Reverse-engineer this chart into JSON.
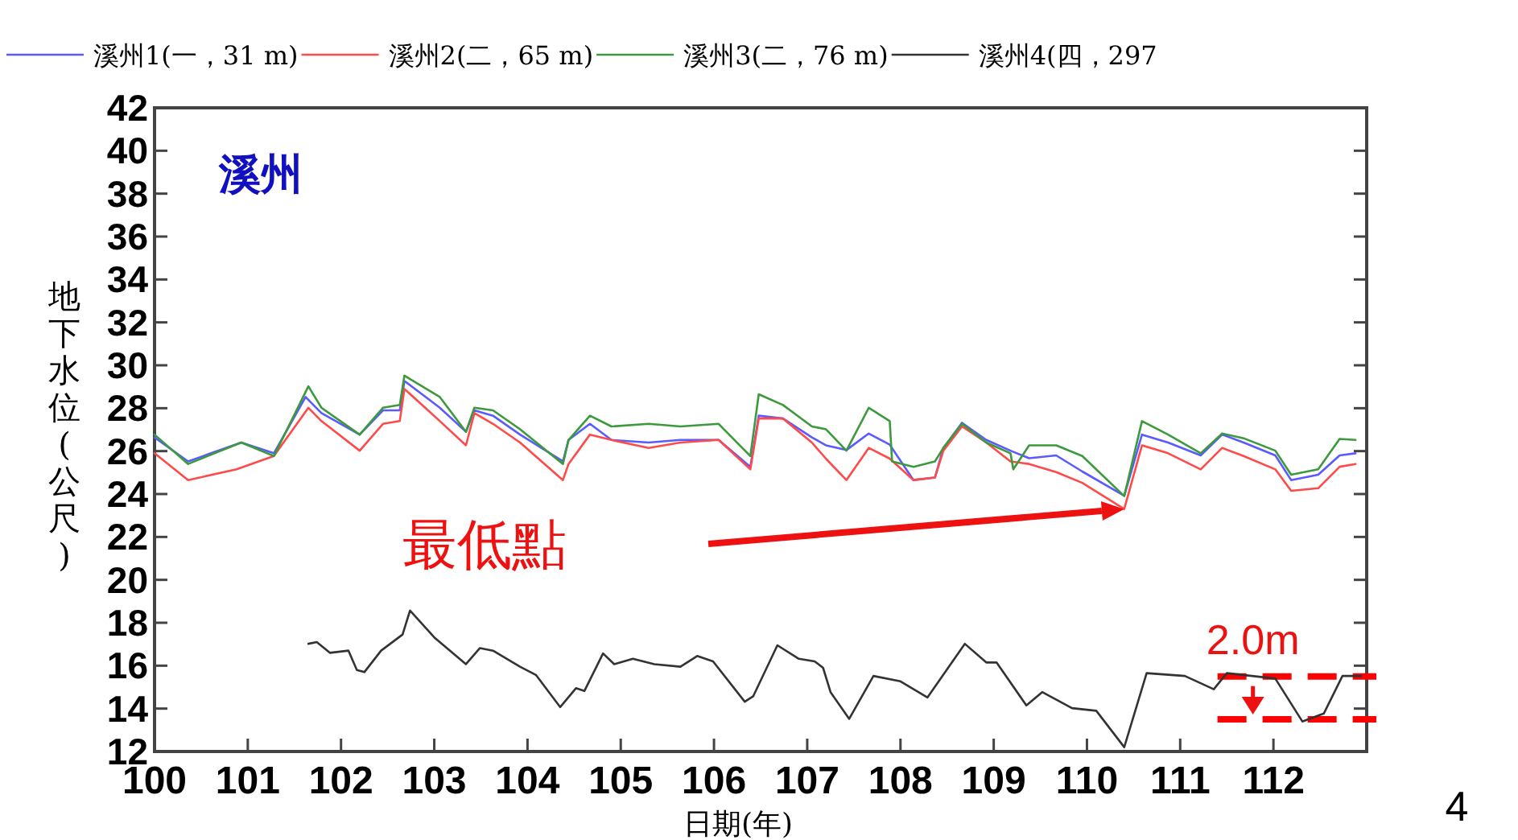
{
  "chart_data": {
    "type": "line",
    "title": "溪州",
    "xlabel": "日期(年)",
    "ylabel": "地下水位(公尺)",
    "xlim": [
      100,
      113
    ],
    "xticks": [
      100,
      101,
      102,
      103,
      104,
      105,
      106,
      107,
      108,
      109,
      110,
      111,
      112
    ],
    "ylim": [
      12,
      42
    ],
    "yticks": [
      12,
      14,
      16,
      18,
      20,
      22,
      24,
      26,
      28,
      30,
      32,
      34,
      36,
      38,
      40,
      42
    ],
    "legend": "top",
    "grid": false,
    "marker": "none",
    "line_style": "solid",
    "series": [
      {
        "name": "溪州1(一，31 m)",
        "color": "#5a5aff",
        "x": [
          100.0,
          100.36,
          100.93,
          101.28,
          101.62,
          101.79,
          102.2,
          102.45,
          102.63,
          102.68,
          103.06,
          103.34,
          103.43,
          103.63,
          103.92,
          104.38,
          104.44,
          104.67,
          104.9,
          105.3,
          105.64,
          106.05,
          106.39,
          106.48,
          106.74,
          107.05,
          107.2,
          107.42,
          107.66,
          107.885,
          108.14,
          108.37,
          108.46,
          108.66,
          108.92,
          109.18,
          109.38,
          109.67,
          109.95,
          110.4,
          110.59,
          110.87,
          111.22,
          111.45,
          111.68,
          112.02,
          112.19,
          112.48,
          112.71,
          112.88
        ],
        "values": [
          26.64,
          25.52,
          26.4,
          25.9,
          28.52,
          27.77,
          26.77,
          27.9,
          27.9,
          29.27,
          28.02,
          26.9,
          27.9,
          27.65,
          26.77,
          25.52,
          26.52,
          27.27,
          26.52,
          26.4,
          26.52,
          26.52,
          25.27,
          27.65,
          27.52,
          26.64,
          26.27,
          26.05,
          26.82,
          26.3,
          24.65,
          24.77,
          26.15,
          27.32,
          26.52,
          26.02,
          25.67,
          25.8,
          25.05,
          23.92,
          26.77,
          26.4,
          25.8,
          26.77,
          26.4,
          25.8,
          24.65,
          24.9,
          25.8,
          25.9
        ]
      },
      {
        "name": "溪州2(二，65 m)",
        "color": "#ff4a4a",
        "x": [
          100.0,
          100.36,
          100.88,
          101.28,
          101.65,
          101.79,
          102.2,
          102.45,
          102.63,
          102.68,
          103.06,
          103.34,
          103.43,
          103.63,
          103.92,
          104.38,
          104.44,
          104.67,
          104.9,
          105.3,
          105.64,
          106.05,
          106.39,
          106.48,
          106.74,
          107.05,
          107.2,
          107.42,
          107.66,
          107.885,
          108.14,
          108.37,
          108.46,
          108.66,
          108.92,
          109.18,
          109.38,
          109.67,
          109.95,
          110.4,
          110.59,
          110.87,
          111.22,
          111.45,
          111.68,
          112.02,
          112.19,
          112.48,
          112.71,
          112.88
        ],
        "values": [
          25.9,
          24.65,
          25.15,
          25.77,
          28.02,
          27.4,
          26.02,
          27.27,
          27.4,
          28.9,
          27.4,
          26.27,
          27.77,
          27.27,
          26.4,
          24.65,
          25.4,
          26.77,
          26.52,
          26.15,
          26.4,
          26.52,
          25.15,
          27.52,
          27.52,
          26.4,
          25.65,
          24.65,
          26.15,
          25.65,
          24.65,
          24.77,
          26.02,
          27.15,
          26.4,
          25.52,
          25.4,
          25.02,
          24.52,
          23.3,
          26.27,
          25.9,
          25.15,
          26.15,
          25.77,
          25.15,
          24.15,
          24.27,
          25.27,
          25.4
        ]
      },
      {
        "name": "溪州3(二，76 m)",
        "color": "#3c9a3c",
        "x": [
          100.0,
          100.36,
          100.93,
          101.28,
          101.65,
          101.79,
          102.2,
          102.45,
          102.63,
          102.68,
          103.06,
          103.34,
          103.43,
          103.63,
          103.92,
          104.38,
          104.44,
          104.67,
          104.9,
          105.3,
          105.64,
          106.05,
          106.39,
          106.48,
          106.74,
          107.05,
          107.2,
          107.42,
          107.66,
          107.885,
          107.91,
          108.14,
          108.37,
          108.46,
          108.66,
          108.92,
          109.18,
          109.21,
          109.38,
          109.67,
          109.95,
          110.4,
          110.59,
          110.87,
          111.22,
          111.45,
          111.68,
          112.02,
          112.19,
          112.48,
          112.71,
          112.88
        ],
        "values": [
          26.77,
          25.4,
          26.4,
          25.77,
          29.02,
          28.02,
          26.77,
          28.02,
          28.15,
          29.52,
          28.52,
          26.9,
          28.02,
          27.9,
          27.02,
          25.4,
          26.52,
          27.65,
          27.15,
          27.27,
          27.15,
          27.27,
          25.77,
          28.65,
          28.15,
          27.15,
          27.02,
          26.02,
          28.02,
          27.4,
          25.52,
          25.27,
          25.52,
          26.15,
          27.27,
          26.4,
          25.9,
          25.15,
          26.27,
          26.27,
          25.77,
          23.9,
          27.4,
          26.77,
          25.9,
          26.82,
          26.6,
          26.02,
          24.9,
          25.15,
          26.57,
          26.52
        ]
      },
      {
        "name": "溪州4(四，297",
        "color": "#333333",
        "x": [
          101.65,
          101.74,
          101.88,
          102.08,
          102.17,
          102.25,
          102.43,
          102.66,
          102.74,
          103.0,
          103.34,
          103.49,
          103.63,
          103.92,
          104.09,
          104.35,
          104.52,
          104.61,
          104.81,
          104.93,
          105.13,
          105.36,
          105.64,
          105.82,
          105.99,
          106.33,
          106.42,
          106.68,
          106.91,
          107.08,
          107.17,
          107.25,
          107.45,
          107.71,
          108.0,
          108.29,
          108.69,
          108.92,
          109.03,
          109.35,
          109.52,
          109.84,
          110.1,
          110.4,
          110.64,
          111.05,
          111.36,
          111.5,
          112.02,
          112.31,
          112.54,
          112.74,
          112.94
        ],
        "values": [
          17.02,
          17.1,
          16.6,
          16.7,
          15.8,
          15.7,
          16.7,
          17.45,
          18.57,
          17.32,
          16.07,
          16.82,
          16.7,
          15.95,
          15.57,
          14.07,
          14.95,
          14.82,
          16.57,
          16.07,
          16.32,
          16.07,
          15.95,
          16.45,
          16.2,
          14.32,
          14.57,
          16.95,
          16.32,
          16.2,
          15.9,
          14.77,
          13.52,
          15.52,
          15.27,
          14.52,
          17.02,
          16.15,
          16.15,
          14.15,
          14.77,
          14.02,
          13.9,
          12.2,
          15.65,
          15.52,
          14.9,
          15.65,
          15.4,
          13.4,
          13.77,
          15.52,
          15.52
        ]
      }
    ],
    "ref_lines": [
      {
        "axis": "y",
        "value": 15.5,
        "color": "#ff0000",
        "line_style": "dashed"
      },
      {
        "axis": "y",
        "value": 13.5,
        "color": "#ff0000",
        "line_style": "dashed"
      }
    ],
    "annotations": [
      "最低點",
      {
        "text": "2.0m",
        "x": 111.78,
        "y": 15.5
      },
      "4"
    ]
  }
}
